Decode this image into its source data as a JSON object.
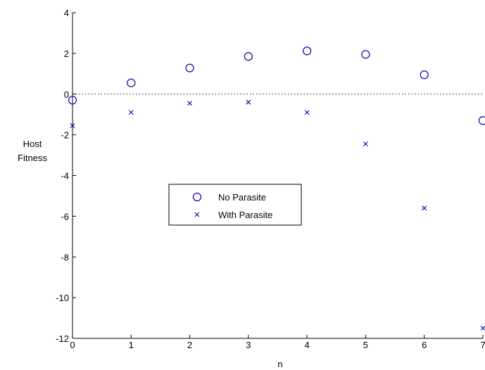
{
  "chart_data": {
    "type": "scatter",
    "xlabel": "n",
    "ylabel_lines": [
      "Host",
      "Fitness"
    ],
    "xlim": [
      0,
      7
    ],
    "ylim": [
      -12,
      4
    ],
    "xticks": [
      0,
      1,
      2,
      3,
      4,
      5,
      6,
      7
    ],
    "yticks": [
      -12,
      -10,
      -8,
      -6,
      -4,
      -2,
      0,
      2,
      4
    ],
    "reference_line": {
      "y": 0,
      "style": "dotted"
    },
    "grid": false,
    "legend_position": "center-left",
    "series": [
      {
        "name": "No Parasite",
        "marker": "circle",
        "color": "#0000a0",
        "x": [
          0,
          1,
          2,
          3,
          4,
          5,
          6,
          7
        ],
        "y": [
          -0.3,
          0.55,
          1.28,
          1.85,
          2.12,
          1.95,
          0.95,
          -1.3
        ]
      },
      {
        "name": "With Parasite",
        "marker": "x",
        "color": "#0000a0",
        "x": [
          0,
          1,
          2,
          3,
          4,
          5,
          6,
          7
        ],
        "y": [
          -1.55,
          -0.9,
          -0.45,
          -0.4,
          -0.9,
          -2.45,
          -5.6,
          -11.5
        ]
      }
    ]
  }
}
